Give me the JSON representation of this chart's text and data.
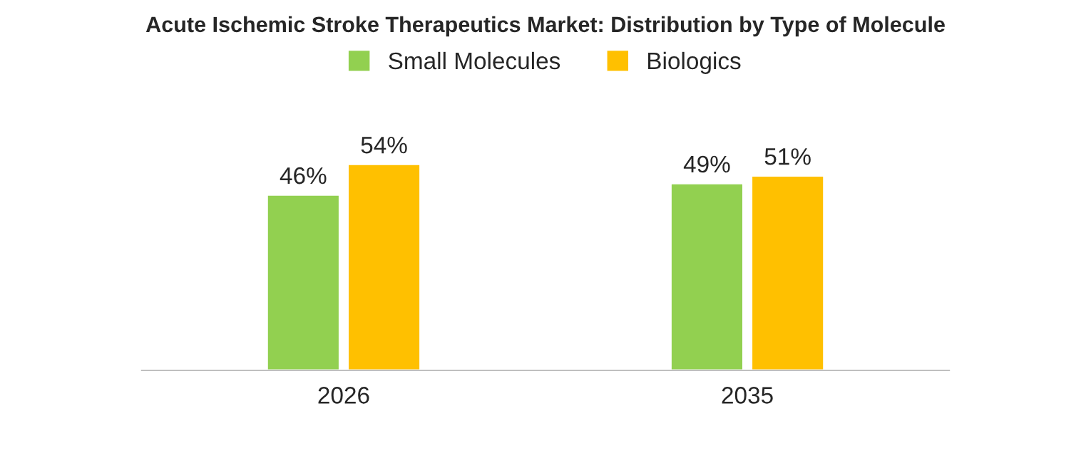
{
  "chart_data": {
    "type": "bar",
    "title": "Acute Ischemic Stroke Therapeutics Market: Distribution by Type of Molecule",
    "categories": [
      "2026",
      "2035"
    ],
    "series": [
      {
        "name": "Small Molecules",
        "color": "#92d050",
        "values": [
          46,
          49
        ],
        "value_labels": [
          "46%",
          "49%"
        ]
      },
      {
        "name": "Biologics",
        "color": "#ffc000",
        "values": [
          54,
          51
        ],
        "value_labels": [
          "54%",
          "51%"
        ]
      }
    ],
    "grid": false,
    "legend": "top",
    "tick_labels": "x"
  }
}
